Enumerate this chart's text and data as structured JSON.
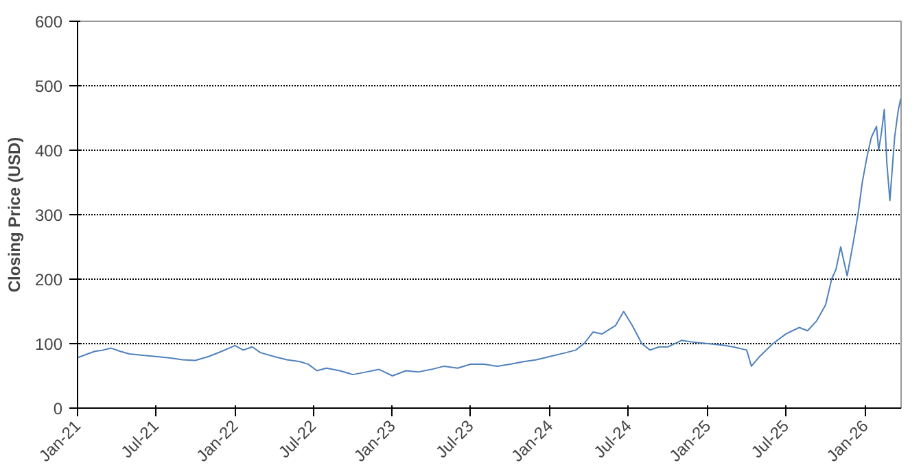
{
  "chart_data": {
    "type": "line",
    "ylabel": "Closing Price (USD)",
    "x": [
      "2021-01-01",
      "2021-01-20",
      "2021-02-10",
      "2021-03-01",
      "2021-03-20",
      "2021-04-10",
      "2021-05-01",
      "2021-06-01",
      "2021-07-01",
      "2021-08-01",
      "2021-09-01",
      "2021-10-01",
      "2021-11-01",
      "2021-12-01",
      "2022-01-01",
      "2022-01-20",
      "2022-02-10",
      "2022-03-01",
      "2022-04-01",
      "2022-05-01",
      "2022-06-01",
      "2022-06-20",
      "2022-07-10",
      "2022-08-01",
      "2022-09-01",
      "2022-10-01",
      "2022-11-01",
      "2022-12-01",
      "2023-01-01",
      "2023-02-01",
      "2023-03-01",
      "2023-04-01",
      "2023-05-01",
      "2023-06-01",
      "2023-07-01",
      "2023-08-01",
      "2023-09-01",
      "2023-10-01",
      "2023-11-01",
      "2023-12-01",
      "2024-01-01",
      "2024-02-01",
      "2024-03-01",
      "2024-03-20",
      "2024-04-10",
      "2024-05-01",
      "2024-06-01",
      "2024-06-20",
      "2024-07-10",
      "2024-08-01",
      "2024-08-20",
      "2024-09-10",
      "2024-10-01",
      "2024-11-01",
      "2024-12-01",
      "2025-01-01",
      "2025-02-01",
      "2025-03-01",
      "2025-04-01",
      "2025-04-12",
      "2025-05-01",
      "2025-06-01",
      "2025-07-01",
      "2025-08-01",
      "2025-08-20",
      "2025-09-10",
      "2025-10-01",
      "2025-10-15",
      "2025-10-25",
      "2025-11-05",
      "2025-11-20",
      "2025-12-05",
      "2025-12-15",
      "2025-12-25",
      "2026-01-05",
      "2026-01-15",
      "2026-01-27",
      "2026-02-01",
      "2026-02-08",
      "2026-02-14",
      "2026-02-20",
      "2026-02-27",
      "2026-03-10",
      "2026-03-18",
      "2026-03-24"
    ],
    "values": [
      78,
      83,
      88,
      90,
      93,
      88,
      84,
      82,
      80,
      78,
      75,
      74,
      80,
      88,
      97,
      90,
      95,
      86,
      80,
      75,
      72,
      68,
      58,
      62,
      58,
      52,
      56,
      60,
      50,
      58,
      56,
      60,
      65,
      62,
      68,
      68,
      65,
      68,
      72,
      75,
      80,
      85,
      90,
      100,
      118,
      115,
      128,
      150,
      128,
      100,
      90,
      95,
      95,
      105,
      102,
      100,
      98,
      95,
      90,
      65,
      80,
      100,
      115,
      125,
      120,
      135,
      160,
      200,
      215,
      250,
      205,
      260,
      300,
      350,
      390,
      420,
      437,
      400,
      430,
      463,
      380,
      322,
      420,
      460,
      480
    ],
    "color": "#4f81bd",
    "xlim": [
      "2021-01-01",
      "2026-03-25"
    ],
    "xticks": [
      {
        "value": "2021-01-01",
        "label": "Jan-21"
      },
      {
        "value": "2021-07-01",
        "label": "Jul-21"
      },
      {
        "value": "2022-01-01",
        "label": "Jan-22"
      },
      {
        "value": "2022-07-01",
        "label": "Jul-22"
      },
      {
        "value": "2023-01-01",
        "label": "Jan-23"
      },
      {
        "value": "2023-07-01",
        "label": "Jul-23"
      },
      {
        "value": "2024-01-01",
        "label": "Jan-24"
      },
      {
        "value": "2024-07-01",
        "label": "Jul-24"
      },
      {
        "value": "2025-01-01",
        "label": "Jan-25"
      },
      {
        "value": "2025-07-01",
        "label": "Jul-25"
      },
      {
        "value": "2026-01-01",
        "label": "Jan-26"
      }
    ],
    "ylim": [
      0,
      600
    ],
    "yticks": [
      0,
      100,
      200,
      300,
      400,
      500,
      600
    ],
    "grid": "y",
    "marker": "none",
    "line_style": "solid"
  }
}
